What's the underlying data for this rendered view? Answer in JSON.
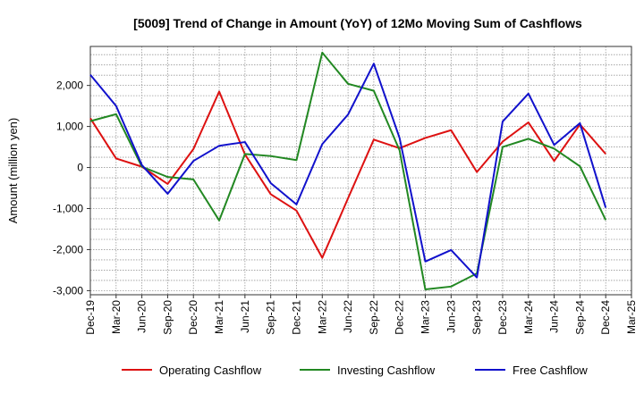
{
  "chart_data": {
    "type": "line",
    "title": "[5009]  Trend of Change in Amount (YoY) of 12Mo Moving Sum of Cashflows",
    "xlabel": "",
    "ylabel": "Amount (million yen)",
    "ylim": [
      -3100,
      2950
    ],
    "yticks": [
      -3000,
      -2000,
      -1000,
      0,
      1000,
      2000
    ],
    "ytick_labels": [
      "-3,000",
      "-2,000",
      "-1,000",
      "0",
      "1,000",
      "2,000"
    ],
    "grid": true,
    "legend_position": "bottom",
    "categories": [
      "Dec-19",
      "Mar-20",
      "Jun-20",
      "Sep-20",
      "Dec-20",
      "Mar-21",
      "Jun-21",
      "Sep-21",
      "Dec-21",
      "Mar-22",
      "Jun-22",
      "Sep-22",
      "Dec-22",
      "Mar-23",
      "Jun-23",
      "Sep-23",
      "Dec-23",
      "Mar-24",
      "Jun-24",
      "Sep-24",
      "Dec-24",
      "Mar-25"
    ],
    "series": [
      {
        "name": "Operating Cashflow",
        "color": "#dd1111",
        "values": [
          1200,
          220,
          20,
          -400,
          450,
          1850,
          320,
          -650,
          -1050,
          -2200,
          -750,
          680,
          470,
          720,
          910,
          -110,
          630,
          1100,
          160,
          1050,
          330,
          null
        ]
      },
      {
        "name": "Investing Cashflow",
        "color": "#228822",
        "values": [
          1130,
          1300,
          20,
          -230,
          -290,
          -1290,
          330,
          280,
          180,
          2800,
          2040,
          1870,
          420,
          -2970,
          -2900,
          -2580,
          500,
          700,
          460,
          30,
          -1280,
          null
        ]
      },
      {
        "name": "Free Cashflow",
        "color": "#1111cc",
        "values": [
          2260,
          1500,
          60,
          -640,
          160,
          530,
          620,
          -380,
          -900,
          570,
          1290,
          2530,
          720,
          -2290,
          -2010,
          -2680,
          1120,
          1800,
          550,
          1080,
          -980,
          null
        ]
      }
    ]
  }
}
